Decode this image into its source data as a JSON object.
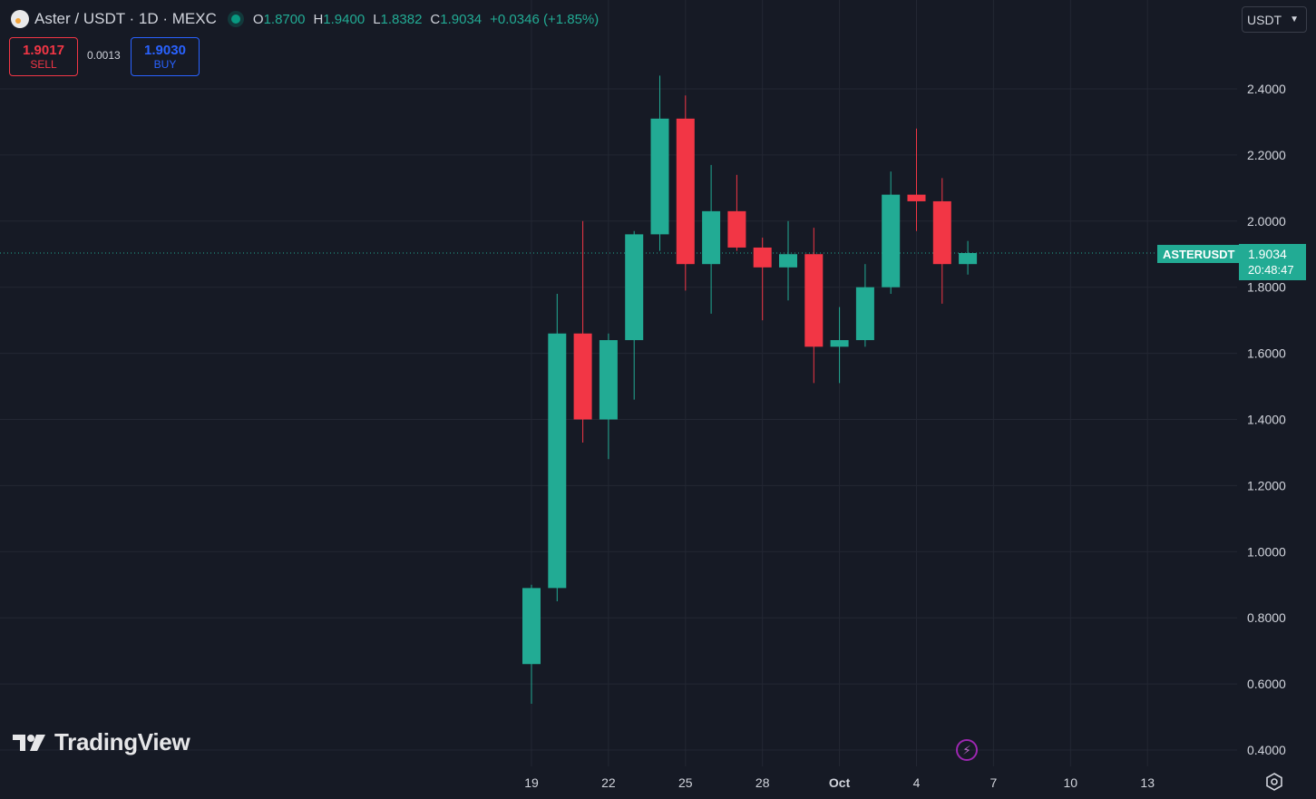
{
  "header": {
    "symbol_line": "Aster / USDT · 1D · MEXC",
    "ohlc": {
      "o_label": "O",
      "o_value": "1.8700",
      "h_label": "H",
      "h_value": "1.9400",
      "l_label": "L",
      "l_value": "1.8382",
      "c_label": "C",
      "c_value": "1.9034",
      "change": "+0.0346 (+1.85%)"
    }
  },
  "trade": {
    "sell_price": "1.9017",
    "sell_label": "SELL",
    "spread": "0.0013",
    "buy_price": "1.9030",
    "buy_label": "BUY"
  },
  "currency_selector": {
    "value": "USDT"
  },
  "last_price": {
    "symbol": "ASTERUSDT",
    "price": "1.9034",
    "countdown": "20:48:47"
  },
  "branding": {
    "logo_text": "TradingView"
  },
  "icons": {
    "flash": "lightning-icon",
    "settings": "settings-icon",
    "dropdown": "chevron-down-icon"
  },
  "colors": {
    "up": "#22ab94",
    "down": "#f23645",
    "background": "#161a25",
    "grid": "#232733"
  },
  "chart_data": {
    "type": "candlestick",
    "title": "Aster / USDT · 1D · MEXC",
    "y_ticks": [
      "2.4000",
      "2.2000",
      "2.0000",
      "1.8000",
      "1.6000",
      "1.4000",
      "1.2000",
      "1.0000",
      "0.8000",
      "0.6000",
      "0.4000"
    ],
    "x_ticks": [
      "19",
      "22",
      "25",
      "28",
      "Oct",
      "4",
      "7",
      "10",
      "13"
    ],
    "ylim": [
      0.4,
      2.4
    ],
    "grid": true,
    "candles": [
      {
        "date": "Sep 19",
        "open": 0.66,
        "high": 0.9,
        "low": 0.54,
        "close": 0.89
      },
      {
        "date": "Sep 20",
        "open": 0.89,
        "high": 1.78,
        "low": 0.85,
        "close": 1.66
      },
      {
        "date": "Sep 21",
        "open": 1.66,
        "high": 2.0,
        "low": 1.33,
        "close": 1.4
      },
      {
        "date": "Sep 22",
        "open": 1.4,
        "high": 1.66,
        "low": 1.28,
        "close": 1.64
      },
      {
        "date": "Sep 23",
        "open": 1.64,
        "high": 1.97,
        "low": 1.46,
        "close": 1.96
      },
      {
        "date": "Sep 24",
        "open": 1.96,
        "high": 2.44,
        "low": 1.91,
        "close": 2.31
      },
      {
        "date": "Sep 25",
        "open": 2.31,
        "high": 2.38,
        "low": 1.79,
        "close": 1.87
      },
      {
        "date": "Sep 26",
        "open": 1.87,
        "high": 2.17,
        "low": 1.72,
        "close": 2.03
      },
      {
        "date": "Sep 27",
        "open": 2.03,
        "high": 2.14,
        "low": 1.91,
        "close": 1.92
      },
      {
        "date": "Sep 28",
        "open": 1.92,
        "high": 1.95,
        "low": 1.7,
        "close": 1.86
      },
      {
        "date": "Sep 29",
        "open": 1.86,
        "high": 2.0,
        "low": 1.76,
        "close": 1.9
      },
      {
        "date": "Sep 30",
        "open": 1.9,
        "high": 1.98,
        "low": 1.51,
        "close": 1.62
      },
      {
        "date": "Oct 1",
        "open": 1.62,
        "high": 1.74,
        "low": 1.51,
        "close": 1.64
      },
      {
        "date": "Oct 2",
        "open": 1.64,
        "high": 1.87,
        "low": 1.62,
        "close": 1.8
      },
      {
        "date": "Oct 3",
        "open": 1.8,
        "high": 2.15,
        "low": 1.78,
        "close": 2.08
      },
      {
        "date": "Oct 4",
        "open": 2.08,
        "high": 2.28,
        "low": 1.97,
        "close": 2.06
      },
      {
        "date": "Oct 5",
        "open": 2.06,
        "high": 2.13,
        "low": 1.75,
        "close": 1.87
      },
      {
        "date": "Oct 6",
        "open": 1.87,
        "high": 1.94,
        "low": 1.8382,
        "close": 1.9034
      }
    ]
  }
}
